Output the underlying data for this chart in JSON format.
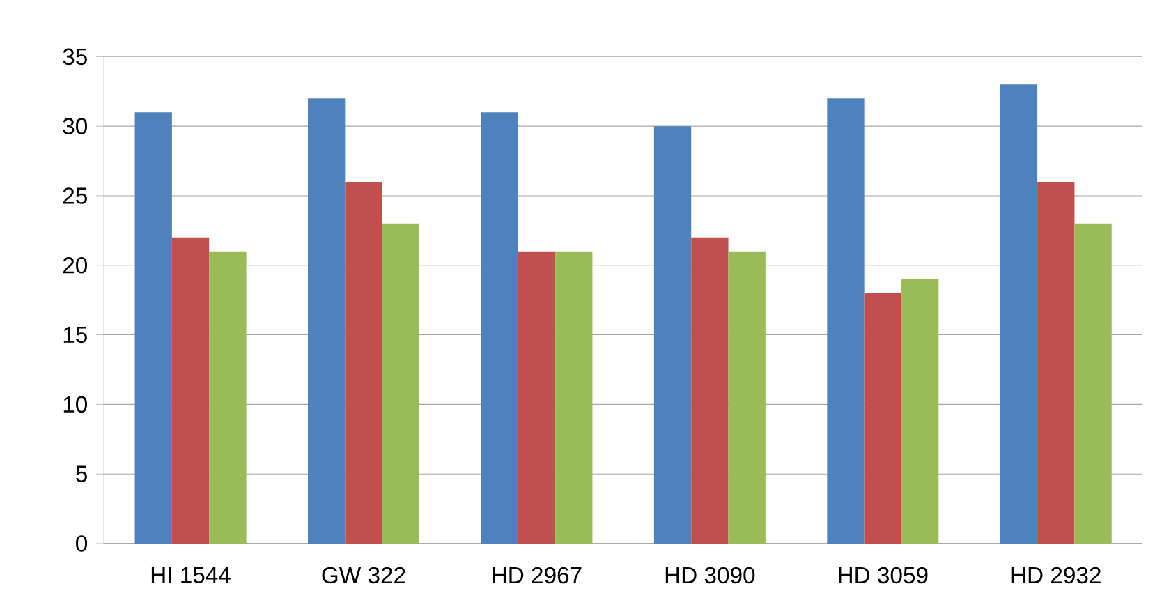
{
  "chart_data": {
    "type": "bar",
    "categories": [
      "HI 1544",
      "GW 322",
      "HD 2967",
      "HD 3090",
      "HD 3059",
      "HD 2932"
    ],
    "series": [
      {
        "color": "#4f81bd",
        "values": [
          31,
          32,
          31,
          30,
          32,
          33
        ]
      },
      {
        "color": "#c0504d",
        "values": [
          22,
          26,
          21,
          22,
          18,
          26
        ]
      },
      {
        "color": "#9bbb59",
        "values": [
          21,
          23,
          21,
          21,
          19,
          23
        ]
      }
    ],
    "ylim": [
      0,
      35
    ],
    "yticks": [
      0,
      5,
      10,
      15,
      20,
      25,
      30,
      35
    ],
    "grid": "y"
  }
}
